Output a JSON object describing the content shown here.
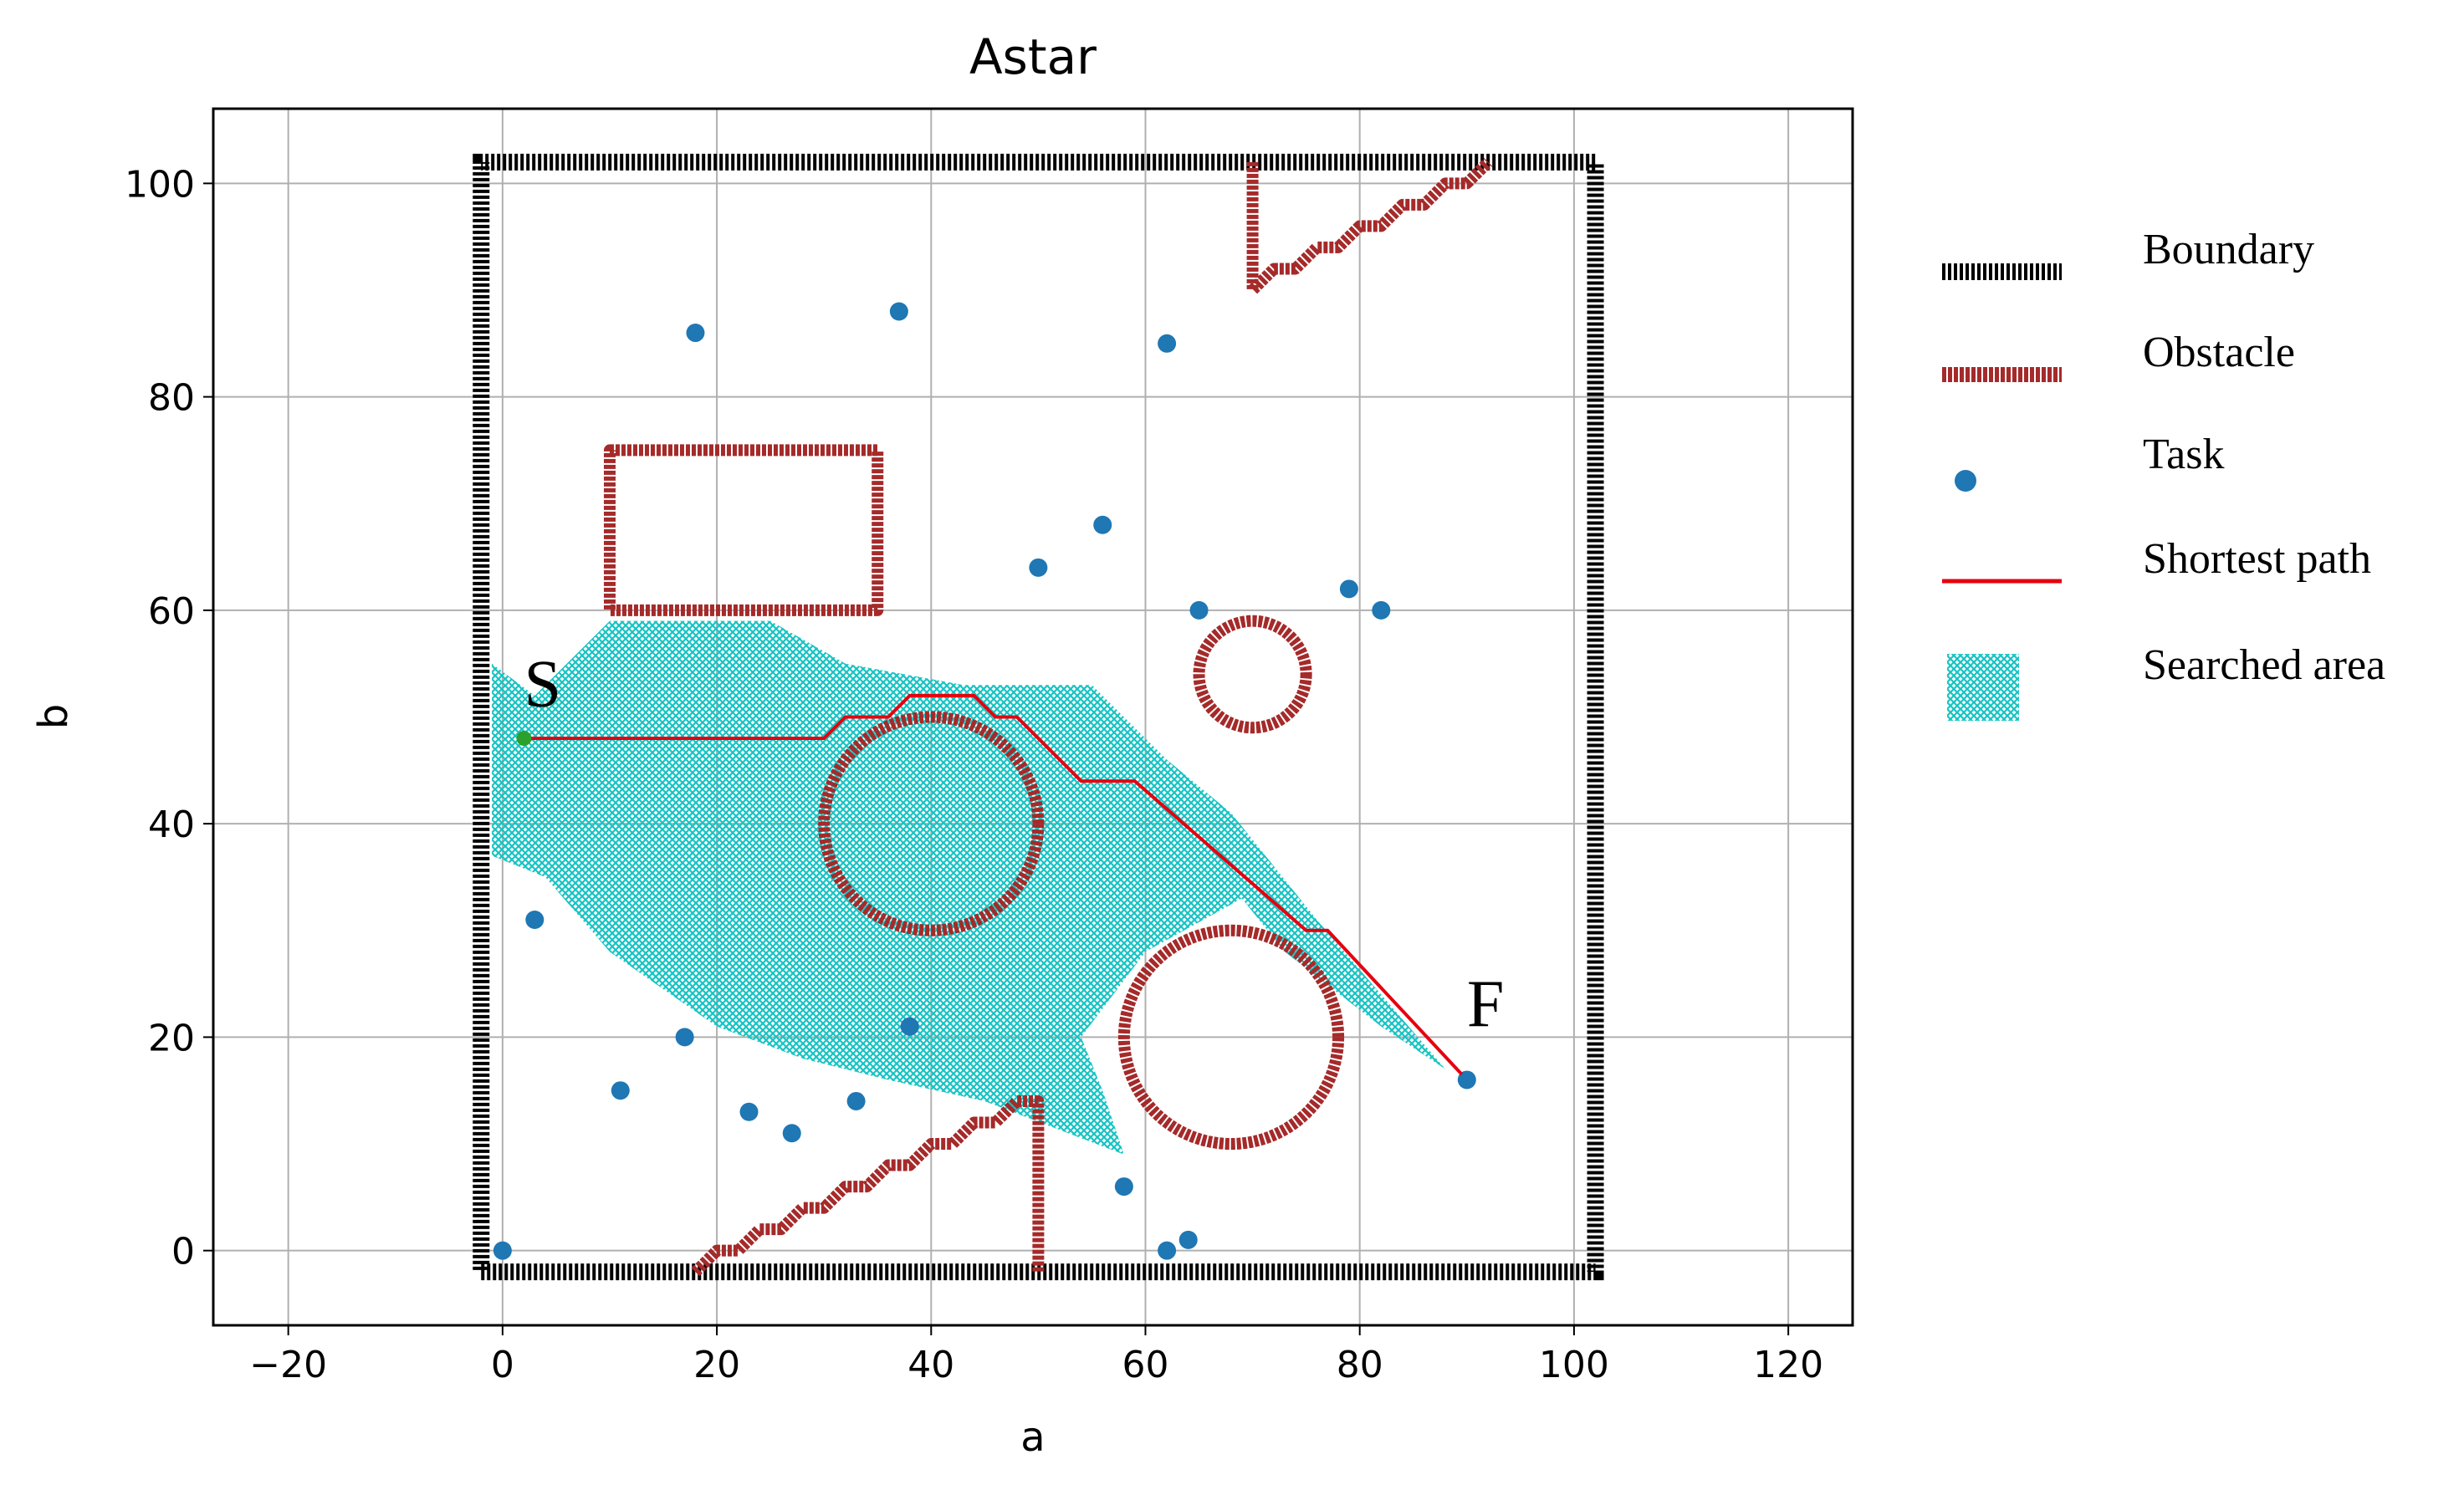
{
  "chart_data": {
    "type": "scatter",
    "title": "Astar",
    "xlabel": "a",
    "ylabel": "b",
    "xlim": [
      -27,
      126
    ],
    "ylim": [
      -7,
      107
    ],
    "xticks": [
      "−20",
      "0",
      "20",
      "40",
      "60",
      "80",
      "100",
      "120"
    ],
    "yticks": [
      "0",
      "20",
      "40",
      "60",
      "80",
      "100"
    ],
    "grid": true,
    "legend_placement": "right, outside plot",
    "colors": {
      "boundary": "#000000",
      "obstacle": "#a52a2a",
      "task": "#1f77b4",
      "path": "#e6000f",
      "searched": "#17c3c3"
    },
    "legend": [
      {
        "key": "boundary",
        "label": "Boundary"
      },
      {
        "key": "obstacle",
        "label": "Obstacle"
      },
      {
        "key": "task",
        "label": "Task"
      },
      {
        "key": "path",
        "label": "Shortest path"
      },
      {
        "key": "searched",
        "label": "Searched area"
      }
    ],
    "annotations": [
      {
        "text": "S",
        "x": 2,
        "y": 51
      },
      {
        "text": "F",
        "x": 90,
        "y": 21
      }
    ],
    "start": [
      2,
      48
    ],
    "finish": [
      90,
      16
    ],
    "boundary": [
      [
        -2,
        -2
      ],
      [
        102,
        -2
      ],
      [
        102,
        102
      ],
      [
        -2,
        102
      ]
    ],
    "obstacles": {
      "rectangles": [
        {
          "x0": 10,
          "y0": 60,
          "x1": 35,
          "y1": 75
        }
      ],
      "circles": [
        {
          "cx": 40,
          "cy": 40,
          "r": 10
        },
        {
          "cx": 68,
          "cy": 20,
          "r": 10
        },
        {
          "cx": 70,
          "cy": 54,
          "r": 5
        }
      ],
      "polylines": [
        [
          [
            70,
            102
          ],
          [
            70,
            90
          ],
          [
            72,
            92
          ],
          [
            74,
            92
          ],
          [
            76,
            94
          ],
          [
            78,
            94
          ],
          [
            80,
            96
          ],
          [
            82,
            96
          ],
          [
            84,
            98
          ],
          [
            86,
            98
          ],
          [
            88,
            100
          ],
          [
            90,
            100
          ],
          [
            92,
            102
          ]
        ],
        [
          [
            18,
            -2
          ],
          [
            20,
            0
          ],
          [
            22,
            0
          ],
          [
            24,
            2
          ],
          [
            26,
            2
          ],
          [
            28,
            4
          ],
          [
            30,
            4
          ],
          [
            32,
            6
          ],
          [
            34,
            6
          ],
          [
            36,
            8
          ],
          [
            38,
            8
          ],
          [
            40,
            10
          ],
          [
            42,
            10
          ],
          [
            44,
            12
          ],
          [
            46,
            12
          ],
          [
            48,
            14
          ],
          [
            50,
            14
          ],
          [
            50,
            -2
          ]
        ]
      ]
    },
    "tasks": [
      [
        18,
        86
      ],
      [
        37,
        88
      ],
      [
        62,
        85
      ],
      [
        56,
        68
      ],
      [
        50,
        64
      ],
      [
        65,
        60
      ],
      [
        79,
        62
      ],
      [
        82,
        60
      ],
      [
        3,
        31
      ],
      [
        17,
        20
      ],
      [
        11,
        15
      ],
      [
        23,
        13
      ],
      [
        27,
        11
      ],
      [
        33,
        14
      ],
      [
        38,
        21
      ],
      [
        58,
        6
      ],
      [
        62,
        0
      ],
      [
        64,
        1
      ],
      [
        0,
        0
      ],
      [
        90,
        16
      ]
    ],
    "shortest_path": [
      [
        2,
        48
      ],
      [
        30,
        48
      ],
      [
        32,
        50
      ],
      [
        36,
        50
      ],
      [
        38,
        52
      ],
      [
        44,
        52
      ],
      [
        46,
        50
      ],
      [
        48,
        50
      ],
      [
        54,
        44
      ],
      [
        59,
        44
      ],
      [
        75,
        30
      ],
      [
        77,
        30
      ],
      [
        90,
        16
      ]
    ],
    "searched_area": [
      [
        -1,
        55
      ],
      [
        3,
        52
      ],
      [
        10,
        59
      ],
      [
        25,
        59
      ],
      [
        32,
        55
      ],
      [
        43,
        53
      ],
      [
        55,
        53
      ],
      [
        62,
        46
      ],
      [
        68,
        41
      ],
      [
        76,
        31
      ],
      [
        88,
        17
      ],
      [
        82,
        21
      ],
      [
        73,
        28
      ],
      [
        69,
        33
      ],
      [
        60,
        28
      ],
      [
        54,
        20
      ],
      [
        56,
        15
      ],
      [
        58,
        9
      ],
      [
        45,
        14
      ],
      [
        36,
        16
      ],
      [
        28,
        18
      ],
      [
        20,
        21
      ],
      [
        10,
        28
      ],
      [
        4,
        35
      ],
      [
        -1,
        37
      ]
    ]
  }
}
